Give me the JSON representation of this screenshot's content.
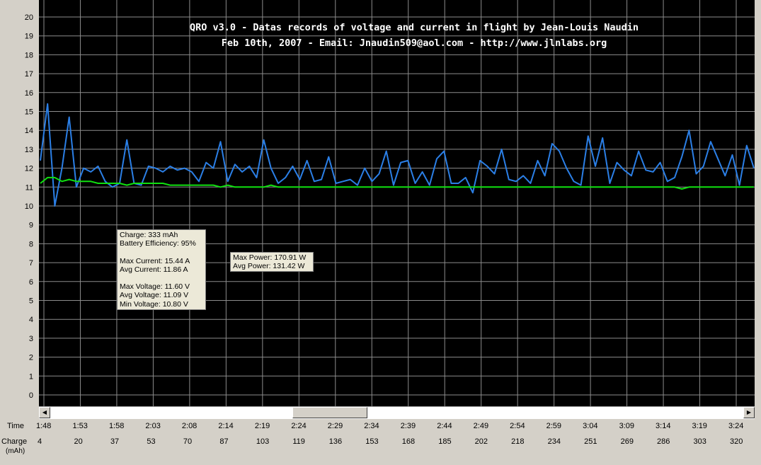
{
  "title_lines": [
    "QRO v3.0 - Datas records of voltage and current in flight by Jean-Louis Naudin",
    "Feb 10th, 2007 - Email: Jnaudin509@aol.com - http://www.jlnlabs.org"
  ],
  "info_box": {
    "lines": [
      "Charge: 333 mAh",
      "Battery Efficiency: 95%",
      "",
      "Max Current: 15.44 A",
      "Avg Current: 11.86 A",
      "",
      "Max Voltage: 11.60 V",
      "Avg Voltage: 11.09 V",
      "Min Voltage: 10.80 V"
    ]
  },
  "power_box": {
    "lines": [
      "Max Power: 170.91 W",
      "Avg Power: 131.42 W"
    ]
  },
  "row_labels": {
    "time": "Time",
    "charge": "Charge",
    "charge_unit": "(mAh)"
  },
  "colors": {
    "background": "#000000",
    "grid": "#8c8c8c",
    "current": "#2b7fe6",
    "voltage": "#10e010"
  },
  "chart_data": {
    "type": "line",
    "grid": true,
    "ylim": [
      0,
      20
    ],
    "yticks": [
      "0",
      "1",
      "2",
      "3",
      "4",
      "5",
      "6",
      "7",
      "8",
      "9",
      "10",
      "11",
      "12",
      "13",
      "14",
      "15",
      "16",
      "17",
      "18",
      "19",
      "20"
    ],
    "time_ticks": [
      "1:48",
      "1:53",
      "1:58",
      "2:03",
      "2:08",
      "2:14",
      "2:19",
      "2:24",
      "2:29",
      "2:34",
      "2:39",
      "2:44",
      "2:49",
      "2:54",
      "2:59",
      "3:04",
      "3:09",
      "3:14",
      "3:19",
      "3:24"
    ],
    "charge_ticks": [
      "4",
      "20",
      "37",
      "53",
      "70",
      "87",
      "103",
      "119",
      "136",
      "153",
      "168",
      "185",
      "202",
      "218",
      "234",
      "251",
      "269",
      "286",
      "303",
      "320"
    ],
    "x": [
      0,
      1,
      2,
      3,
      4,
      5,
      6,
      7,
      8,
      9,
      10,
      11,
      12,
      13,
      14,
      15,
      16,
      17,
      18,
      19,
      20,
      21,
      22,
      23,
      24,
      25,
      26,
      27,
      28,
      29,
      30,
      31,
      32,
      33,
      34,
      35,
      36,
      37,
      38,
      39,
      40,
      41,
      42,
      43,
      44,
      45,
      46,
      47,
      48,
      49,
      50,
      51,
      52,
      53,
      54,
      55,
      56,
      57,
      58,
      59,
      60,
      61,
      62,
      63,
      64,
      65,
      66,
      67,
      68,
      69,
      70,
      71,
      72,
      73,
      74,
      75,
      76,
      77,
      78,
      79,
      80,
      81,
      82,
      83,
      84,
      85,
      86,
      87,
      88,
      89,
      90,
      91,
      92,
      93,
      94,
      95,
      96,
      97,
      98,
      99
    ],
    "series": [
      {
        "color": "#2b7fe6",
        "values": [
          12.4,
          15.4,
          10.0,
          12.0,
          14.7,
          11.0,
          12.0,
          11.8,
          12.1,
          11.3,
          11.0,
          11.2,
          13.5,
          11.2,
          11.1,
          12.1,
          12.0,
          11.8,
          12.1,
          11.9,
          12.0,
          11.8,
          11.3,
          12.3,
          12.0,
          13.4,
          11.3,
          12.2,
          11.8,
          12.1,
          11.5,
          13.5,
          12.0,
          11.2,
          11.5,
          12.1,
          11.4,
          12.4,
          11.3,
          11.4,
          12.6,
          11.2,
          11.3,
          11.4,
          11.1,
          12.0,
          11.3,
          11.7,
          12.9,
          11.1,
          12.3,
          12.4,
          11.2,
          11.8,
          11.1,
          12.5,
          12.9,
          11.2,
          11.2,
          11.5,
          10.7,
          12.4,
          12.1,
          11.7,
          13.0,
          11.4,
          11.3,
          11.6,
          11.2,
          12.4,
          11.6,
          13.3,
          12.9,
          12.0,
          11.3,
          11.1,
          13.7,
          12.1,
          13.6,
          11.2,
          12.3,
          11.9,
          11.6,
          12.9,
          11.9,
          11.8,
          12.3,
          11.3,
          11.5,
          12.6,
          14.0,
          11.7,
          12.1,
          13.4,
          12.5,
          11.6,
          12.7,
          11.1,
          13.2,
          12.0
        ]
      },
      {
        "color": "#10e010",
        "values": [
          11.2,
          11.5,
          11.5,
          11.3,
          11.4,
          11.3,
          11.3,
          11.3,
          11.2,
          11.2,
          11.2,
          11.2,
          11.1,
          11.2,
          11.2,
          11.2,
          11.2,
          11.2,
          11.1,
          11.1,
          11.1,
          11.1,
          11.1,
          11.1,
          11.1,
          11.0,
          11.1,
          11.0,
          11.0,
          11.0,
          11.0,
          11.0,
          11.1,
          11.0,
          11.0,
          11.0,
          11.0,
          11.0,
          11.0,
          11.0,
          11.0,
          11.0,
          11.0,
          11.0,
          11.0,
          11.0,
          11.0,
          11.0,
          11.0,
          11.0,
          11.0,
          11.0,
          11.0,
          11.0,
          11.0,
          11.0,
          11.0,
          11.0,
          11.0,
          11.0,
          11.0,
          11.0,
          11.0,
          11.0,
          11.0,
          11.0,
          11.0,
          11.0,
          11.0,
          11.0,
          11.0,
          11.0,
          11.0,
          11.0,
          11.0,
          11.0,
          11.0,
          11.0,
          11.0,
          11.0,
          11.0,
          11.0,
          11.0,
          11.0,
          11.0,
          11.0,
          11.0,
          11.0,
          11.0,
          10.9,
          11.0,
          11.0,
          11.0,
          11.0,
          11.0,
          11.0,
          11.0,
          11.0,
          11.0,
          11.0
        ]
      }
    ]
  }
}
